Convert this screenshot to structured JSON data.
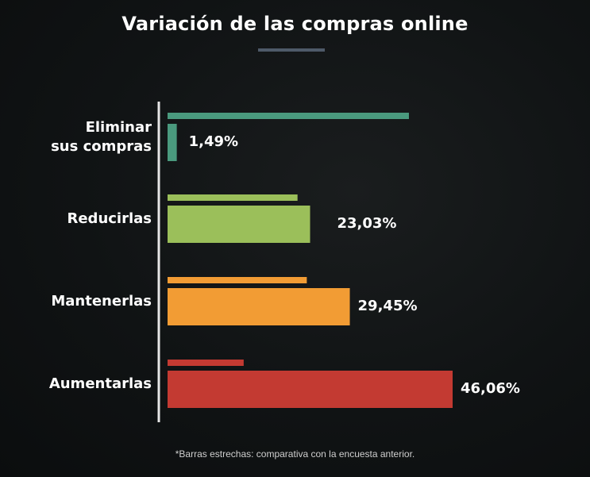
{
  "chart_data": {
    "type": "bar",
    "orientation": "horizontal",
    "title": "Variación de las compras online",
    "categories": [
      "Eliminar\nsus compras",
      "Reducirlas",
      "Mantenerlas",
      "Aumentarlas"
    ],
    "series": [
      {
        "values": [
          1.49,
          23.03,
          29.45,
          46.06
        ],
        "labels": [
          "1,49%",
          "23,03%",
          "29,45%",
          "46,06%"
        ]
      },
      {
        "values": [
          39.0,
          21.0,
          22.5,
          12.3
        ]
      }
    ],
    "xlim": [
      0,
      46.06
    ],
    "colors": [
      "#4a9a7e",
      "#9bbf5a",
      "#f29c34",
      "#c33a32"
    ],
    "footnote": "*Barras estrechas: comparativa con la encuesta anterior."
  }
}
